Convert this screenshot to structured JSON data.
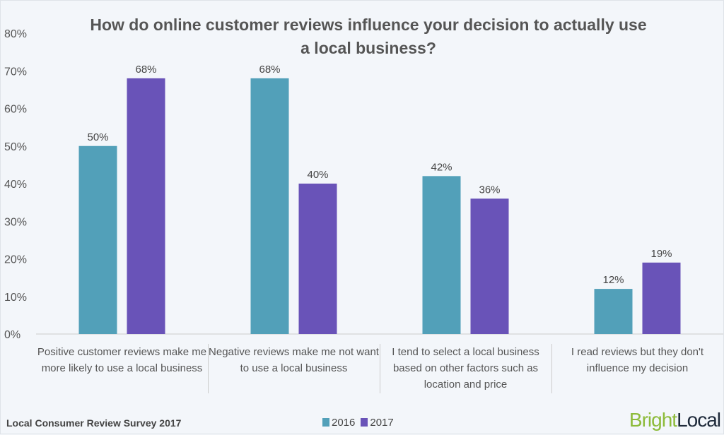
{
  "chart_data": {
    "type": "bar",
    "title": "How do online customer reviews influence your decision to actually use a local business?",
    "categories": [
      "Positive customer reviews make me more likely to use a local business",
      "Negative reviews make me not want to use a local business",
      "I tend to select a local business based on other factors such as location and price",
      "I read reviews but they don't influence my decision"
    ],
    "series": [
      {
        "name": "2016",
        "color": "#52a0b9",
        "values": [
          50,
          68,
          42,
          12
        ],
        "labels": [
          "50%",
          "68%",
          "42%",
          "12%"
        ]
      },
      {
        "name": "2017",
        "color": "#6953b8",
        "values": [
          68,
          40,
          36,
          19
        ],
        "labels": [
          "68%",
          "40%",
          "36%",
          "19%"
        ]
      }
    ],
    "ylim": [
      0,
      80
    ],
    "yticks": [
      "0%",
      "10%",
      "20%",
      "30%",
      "40%",
      "50%",
      "60%",
      "70%",
      "80%"
    ],
    "grid": false,
    "legend": "bottom-center"
  },
  "footer": {
    "source": "Local Consumer Review Survey 2017",
    "logo_part1": "Bright",
    "logo_part2": "Local"
  }
}
